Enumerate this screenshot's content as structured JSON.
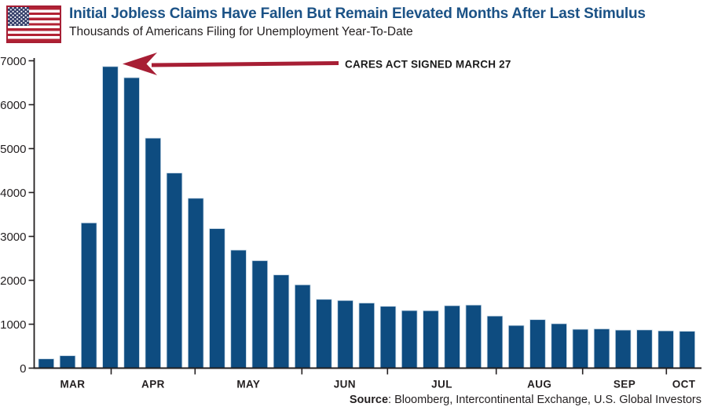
{
  "header": {
    "title": "Initial Jobless Claims Have Fallen But Remain Elevated Months After Last Stimulus",
    "subtitle": "Thousands of Americans Filing for Unemployment Year-To-Date",
    "title_color": "#1B5286"
  },
  "annotation": {
    "text": "CARES ACT SIGNED MARCH 27",
    "arrow_color": "#A71E34"
  },
  "source_line": {
    "label": "Source",
    "rest": ": Bloomberg, Intercontinental Exchange, U.S. Global Investors"
  },
  "chart_data": {
    "type": "bar",
    "title": "Initial Jobless Claims Have Fallen But Remain Elevated Months After Last Stimulus",
    "ylabel": "Thousands of Americans Filing for Unemployment Year-To-Date",
    "unit": "thousands of weekly initial jobless claims",
    "ylim": [
      0,
      7000
    ],
    "y_ticks": [
      0,
      1000,
      2000,
      3000,
      4000,
      5000,
      6000,
      7000
    ],
    "x_tick_labels": [
      "MAR",
      "APR",
      "MAY",
      "JUN",
      "JUL",
      "AUG",
      "SEP",
      "OCT"
    ],
    "bars_per_month": [
      4,
      4,
      5,
      4,
      5,
      4,
      4,
      1
    ],
    "values": [
      211,
      282,
      3307,
      6867,
      6615,
      5237,
      4442,
      3867,
      3176,
      2687,
      2446,
      2123,
      1897,
      1566,
      1540,
      1482,
      1408,
      1310,
      1308,
      1422,
      1435,
      1186,
      971,
      1104,
      1011,
      884,
      893,
      866,
      870,
      849,
      840
    ],
    "annotated_bar_value": 6867,
    "bar_color": "#0E4C80",
    "bar_edge_color": "#C3D5E4",
    "axis_color": "#231F20",
    "grid": false,
    "legend": "none"
  }
}
